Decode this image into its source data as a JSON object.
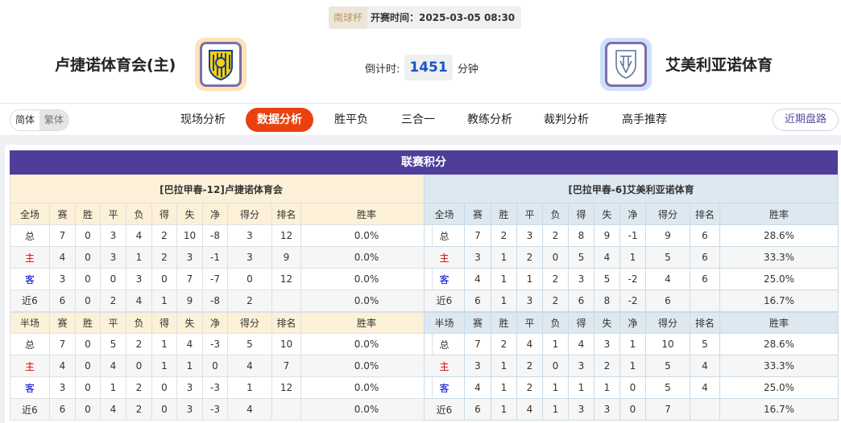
{
  "match": {
    "cup": "南球杯",
    "time": "开赛时间：2025-03-05 08:30",
    "home": "卢捷诺体育会(主)",
    "away": "艾美利亚诺体育",
    "countdown_label": "倒计时:",
    "countdown_value": "1451",
    "countdown_unit": "分钟"
  },
  "nav": {
    "lang": [
      "简体",
      "繁体"
    ],
    "tabs": [
      "现场分析",
      "数据分析",
      "胜平负",
      "三合一",
      "教练分析",
      "裁判分析",
      "高手推荐"
    ],
    "active_tab": "数据分析",
    "recent": "近期盘路"
  },
  "colors": {
    "title_bar": "#503d9a",
    "active_tab": "#e8420f",
    "home_label": "#e00000",
    "away_label": "#0000d0"
  },
  "standings": {
    "title": "联赛积分",
    "columns_full": [
      "全场",
      "赛",
      "胜",
      "平",
      "负",
      "得",
      "失",
      "净",
      "得分",
      "排名",
      "胜率"
    ],
    "columns_half": [
      "半场",
      "赛",
      "胜",
      "平",
      "负",
      "得",
      "失",
      "净",
      "得分",
      "排名",
      "胜率"
    ],
    "home": {
      "caption": "[巴拉甲春-12]卢捷诺体育会",
      "full": [
        [
          "总",
          "7",
          "0",
          "3",
          "4",
          "2",
          "10",
          "-8",
          "3",
          "12",
          "0.0%"
        ],
        [
          "主",
          "4",
          "0",
          "3",
          "1",
          "2",
          "3",
          "-1",
          "3",
          "9",
          "0.0%"
        ],
        [
          "客",
          "3",
          "0",
          "0",
          "3",
          "0",
          "7",
          "-7",
          "0",
          "12",
          "0.0%"
        ],
        [
          "近6",
          "6",
          "0",
          "2",
          "4",
          "1",
          "9",
          "-8",
          "2",
          "",
          "0.0%"
        ]
      ],
      "half": [
        [
          "总",
          "7",
          "0",
          "5",
          "2",
          "1",
          "4",
          "-3",
          "5",
          "10",
          "0.0%"
        ],
        [
          "主",
          "4",
          "0",
          "4",
          "0",
          "1",
          "1",
          "0",
          "4",
          "7",
          "0.0%"
        ],
        [
          "客",
          "3",
          "0",
          "1",
          "2",
          "0",
          "3",
          "-3",
          "1",
          "12",
          "0.0%"
        ],
        [
          "近6",
          "6",
          "0",
          "4",
          "2",
          "0",
          "3",
          "-3",
          "4",
          "",
          "0.0%"
        ]
      ]
    },
    "away": {
      "caption": "[巴拉甲春-6]艾美利亚诺体育",
      "full": [
        [
          "总",
          "7",
          "2",
          "3",
          "2",
          "8",
          "9",
          "-1",
          "9",
          "6",
          "28.6%"
        ],
        [
          "主",
          "3",
          "1",
          "2",
          "0",
          "5",
          "4",
          "1",
          "5",
          "6",
          "33.3%"
        ],
        [
          "客",
          "4",
          "1",
          "1",
          "2",
          "3",
          "5",
          "-2",
          "4",
          "6",
          "25.0%"
        ],
        [
          "近6",
          "6",
          "1",
          "3",
          "2",
          "6",
          "8",
          "-2",
          "6",
          "",
          "16.7%"
        ]
      ],
      "half": [
        [
          "总",
          "7",
          "2",
          "4",
          "1",
          "4",
          "3",
          "1",
          "10",
          "5",
          "28.6%"
        ],
        [
          "主",
          "3",
          "1",
          "2",
          "0",
          "3",
          "2",
          "1",
          "5",
          "4",
          "33.3%"
        ],
        [
          "客",
          "4",
          "1",
          "2",
          "1",
          "1",
          "1",
          "0",
          "5",
          "4",
          "25.0%"
        ],
        [
          "近6",
          "6",
          "1",
          "4",
          "1",
          "3",
          "3",
          "0",
          "7",
          "",
          "16.7%"
        ]
      ]
    }
  }
}
